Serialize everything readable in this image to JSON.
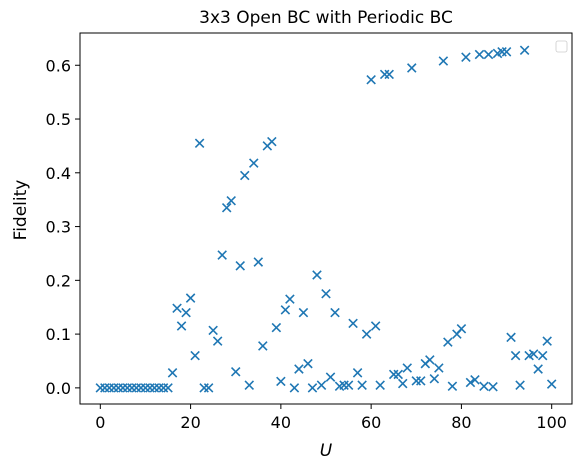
{
  "chart_data": {
    "type": "scatter",
    "title": "3x3 Open BC with Periodic BC",
    "xlabel": "U",
    "ylabel": "Fidelity",
    "xlim": [
      -4.5,
      104.5
    ],
    "ylim": [
      -0.03,
      0.66
    ],
    "xticks": [
      0,
      20,
      40,
      60,
      80,
      100
    ],
    "yticks": [
      0.0,
      0.1,
      0.2,
      0.3,
      0.4,
      0.5,
      0.6
    ],
    "ytick_labels": [
      "0.0",
      "0.1",
      "0.2",
      "0.3",
      "0.4",
      "0.5",
      "0.6"
    ],
    "marker": "x",
    "color": "#1f77b4",
    "grid": false,
    "legend": {
      "placement": "top-right",
      "entries": []
    },
    "series": [
      {
        "x": [
          0,
          1,
          2,
          3,
          4,
          5,
          6,
          7,
          8,
          9,
          10,
          11,
          12,
          13,
          14,
          15,
          16,
          17,
          18,
          19,
          20,
          21,
          22,
          23,
          24,
          25,
          26,
          27,
          28,
          29,
          30,
          31,
          32,
          33,
          34,
          35,
          36,
          37,
          38,
          39,
          40,
          41,
          42,
          43,
          44,
          45,
          46,
          47,
          48,
          49,
          50,
          51,
          52,
          53,
          54,
          55,
          56,
          57,
          58,
          59,
          60,
          61,
          62,
          63,
          64,
          65,
          66,
          67,
          68,
          69,
          70,
          71,
          72,
          73,
          74,
          75,
          76,
          77,
          78,
          79,
          80,
          81,
          82,
          83,
          84,
          85,
          86,
          87,
          88,
          89,
          90,
          91,
          92,
          93,
          94,
          95,
          96,
          97,
          98,
          99,
          100
        ],
        "y": [
          0.0,
          0.0,
          0.0,
          0.0,
          0.0,
          0.0,
          0.0,
          0.0,
          0.0,
          0.0,
          0.0,
          0.0,
          0.0,
          0.0,
          0.0,
          0.0,
          0.028,
          0.148,
          0.115,
          0.14,
          0.167,
          0.06,
          0.455,
          0.0,
          0.0,
          0.107,
          0.087,
          0.247,
          0.335,
          0.348,
          0.03,
          0.227,
          0.395,
          0.005,
          0.418,
          0.234,
          0.078,
          0.45,
          0.458,
          0.112,
          0.012,
          0.145,
          0.165,
          0.0,
          0.035,
          0.14,
          0.045,
          0.0,
          0.21,
          0.005,
          0.175,
          0.02,
          0.14,
          0.003,
          0.005,
          0.005,
          0.12,
          0.028,
          0.005,
          0.1,
          0.573,
          0.115,
          0.005,
          0.583,
          0.583,
          0.025,
          0.025,
          0.008,
          0.037,
          0.595,
          0.013,
          0.013,
          0.045,
          0.052,
          0.017,
          0.037,
          0.608,
          0.085,
          0.003,
          0.1,
          0.11,
          0.615,
          0.01,
          0.015,
          0.62,
          0.003,
          0.62,
          0.002,
          0.622,
          0.625,
          0.625,
          0.094,
          0.06,
          0.005,
          0.628,
          0.06,
          0.063,
          0.035,
          0.06,
          0.087,
          0.007
        ]
      }
    ]
  }
}
